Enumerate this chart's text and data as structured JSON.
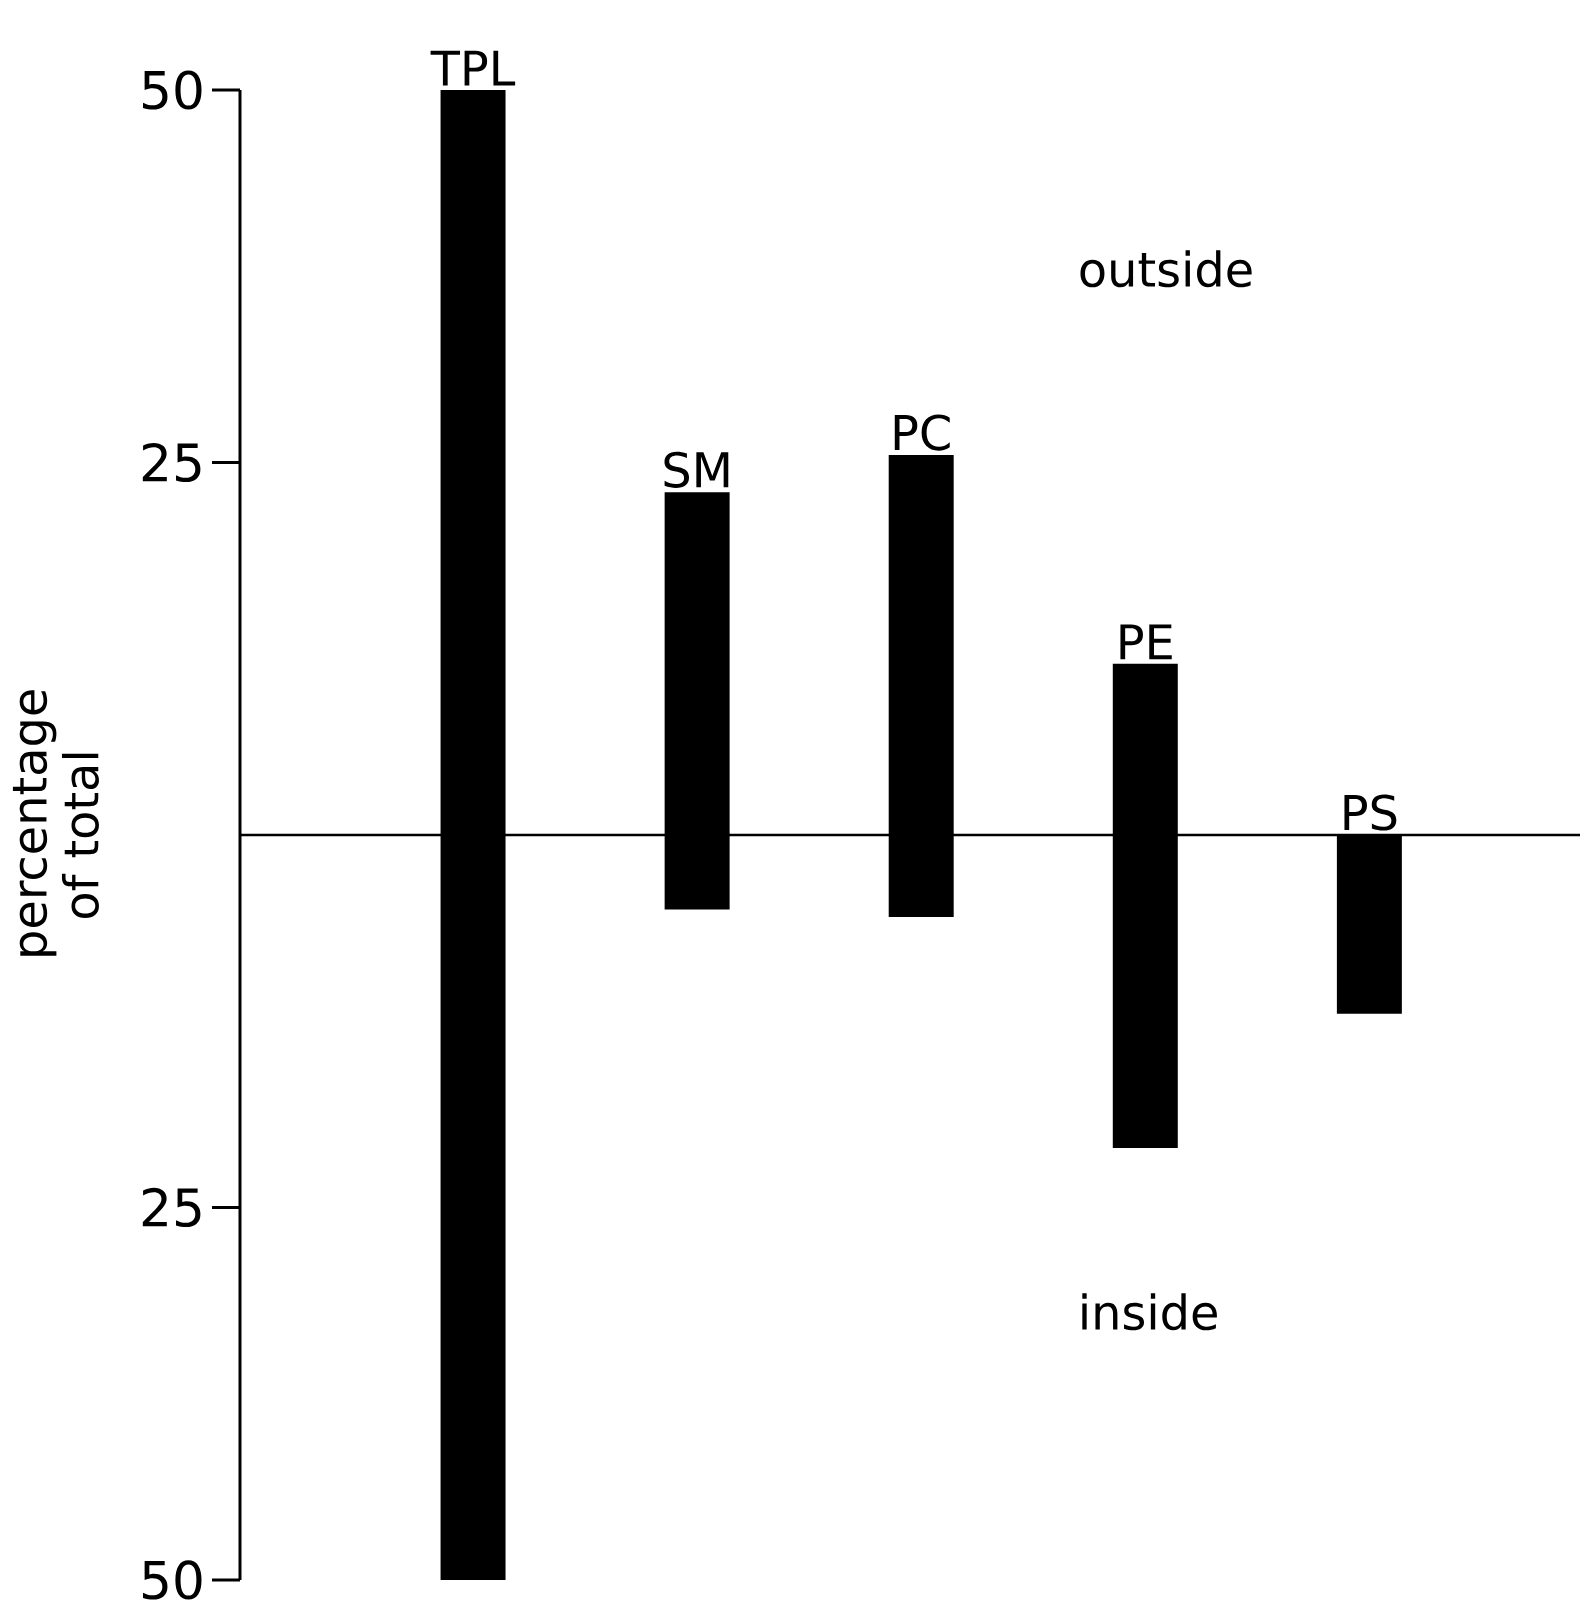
{
  "chart_data": {
    "type": "bar",
    "ylabel": "percentage of total",
    "categories": [
      "TPL",
      "SM",
      "PC",
      "PE",
      "PS"
    ],
    "base": [
      -50,
      -5,
      -5.5,
      -21,
      -12
    ],
    "values": [
      100,
      28,
      31,
      32.5,
      12
    ],
    "color": "#000000",
    "ylim": [
      -50,
      50
    ],
    "yticks": [
      {
        "value": -50,
        "label": "50"
      },
      {
        "value": -25,
        "label": "25"
      },
      {
        "value": 25,
        "label": "25"
      },
      {
        "value": 50,
        "label": "50"
      }
    ],
    "ref_lines": [
      {
        "axis": "y",
        "value": 0
      }
    ],
    "annotations": [
      "outside",
      "inside"
    ],
    "tick_labels": "y"
  }
}
